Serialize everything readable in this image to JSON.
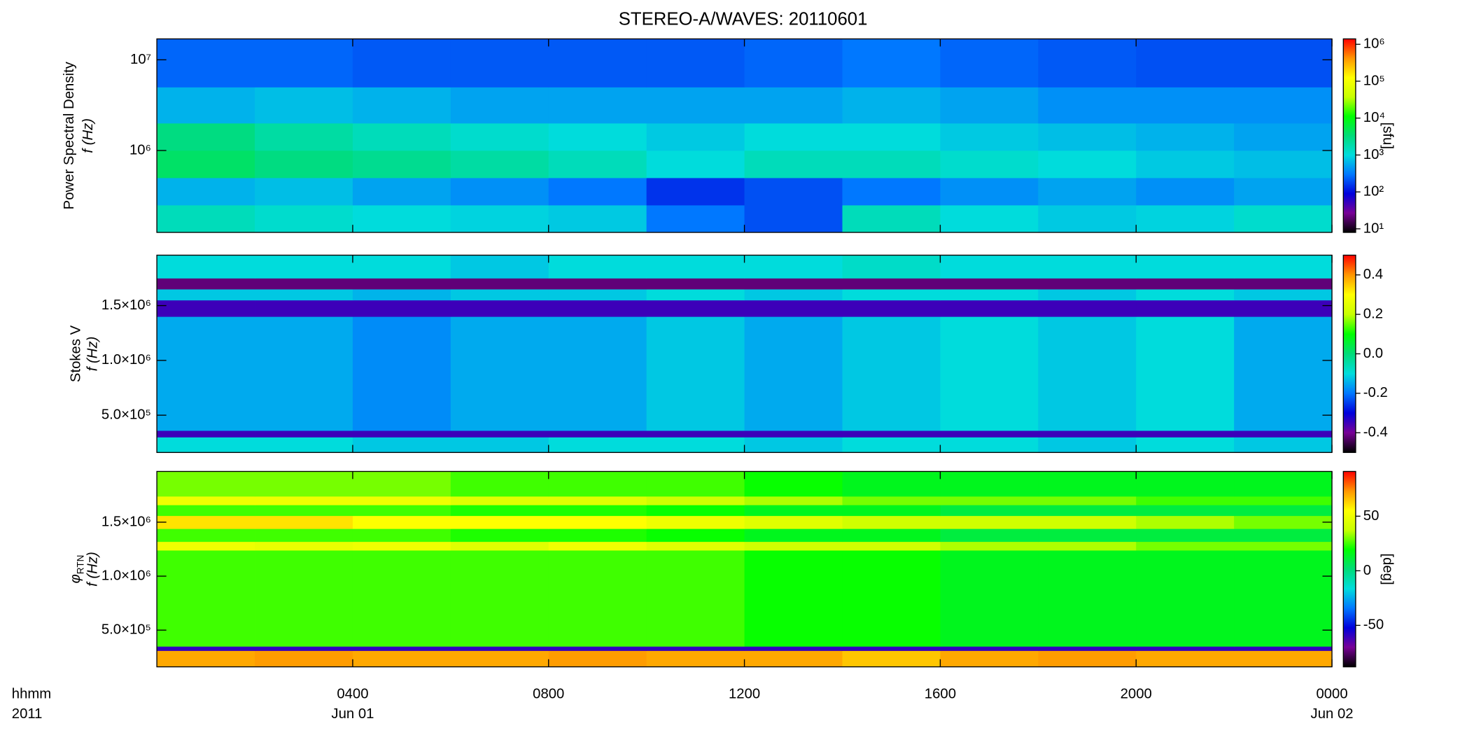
{
  "title": "STEREO-A/WAVES: 20110601",
  "chart_data": [
    {
      "type": "heatmap",
      "ylabel": "Power Spectral Density",
      "ylabel2": "f (Hz)",
      "zlabel": "[sfu]",
      "xlim": [
        0,
        24
      ],
      "ylim": [
        125000,
        17000000
      ],
      "ylog": true,
      "yticks": [
        {
          "value": 1000000,
          "label": "10⁶"
        },
        {
          "value": 10000000,
          "label": "10⁷"
        }
      ],
      "zlim": [
        8,
        1400000
      ],
      "zlog": true,
      "zticks": [
        {
          "value": 10,
          "label": "10¹"
        },
        {
          "value": 100,
          "label": "10²"
        },
        {
          "value": 1000,
          "label": "10³"
        },
        {
          "value": 10000,
          "label": "10⁴"
        },
        {
          "value": 100000,
          "label": "10⁵"
        },
        {
          "value": 1000000,
          "label": "10⁶"
        }
      ],
      "colormap": [
        "#000000",
        "#780096",
        "#0000dc",
        "#0078ff",
        "#00dcdc",
        "#00dc78",
        "#00ff00",
        "#c8ff00",
        "#ffff00",
        "#ff9600",
        "#ff0000"
      ],
      "x_edges": [
        0,
        2,
        4,
        6,
        8,
        10,
        12,
        14,
        16,
        18,
        20,
        22,
        24
      ],
      "y_edges": [
        125000,
        250000,
        500000,
        1000000,
        2000000,
        5000000,
        17000000
      ],
      "z": [
        [
          1500,
          1200,
          1000,
          900,
          800,
          300,
          200,
          1500,
          1000,
          800,
          900,
          1200
        ],
        [
          600,
          700,
          500,
          400,
          300,
          150,
          200,
          300,
          400,
          500,
          400,
          500
        ],
        [
          4000,
          3000,
          2500,
          2000,
          1500,
          1000,
          1500,
          1500,
          1200,
          1000,
          800,
          700
        ],
        [
          3000,
          2000,
          1500,
          1200,
          1000,
          800,
          1000,
          1000,
          800,
          700,
          600,
          500
        ],
        [
          600,
          700,
          600,
          500,
          500,
          500,
          500,
          600,
          500,
          400,
          400,
          400
        ],
        [
          250,
          250,
          220,
          220,
          220,
          220,
          250,
          300,
          250,
          220,
          200,
          200
        ]
      ]
    },
    {
      "type": "heatmap",
      "ylabel": "Stokes V",
      "ylabel2": "f (Hz)",
      "xlim": [
        0,
        24
      ],
      "ylim": [
        160000,
        1960000
      ],
      "yticks": [
        {
          "value": 500000,
          "label": "5.0×10⁵"
        },
        {
          "value": 1000000,
          "label": "1.0×10⁶"
        },
        {
          "value": 1500000,
          "label": "1.5×10⁶"
        }
      ],
      "zlim": [
        -0.5,
        0.5
      ],
      "zticks": [
        -0.4,
        -0.2,
        {
          "value": 0,
          "label": "0.0"
        },
        0.2,
        0.4
      ],
      "colormap": [
        "#000000",
        "#780096",
        "#0000dc",
        "#0078ff",
        "#00dcdc",
        "#00dc78",
        "#00ff00",
        "#c8ff00",
        "#ffff00",
        "#ff9600",
        "#ff0000"
      ],
      "x_edges": [
        0,
        2,
        4,
        6,
        8,
        10,
        12,
        14,
        16,
        18,
        20,
        22,
        24
      ],
      "y_edges": [
        160000,
        300000,
        360000,
        1400000,
        1550000,
        1650000,
        1750000,
        1960000
      ],
      "z": [
        [
          -0.1,
          -0.1,
          -0.12,
          -0.12,
          -0.1,
          -0.1,
          -0.12,
          -0.1,
          -0.1,
          -0.12,
          -0.1,
          -0.12
        ],
        [
          -0.35,
          -0.35,
          -0.35,
          -0.35,
          -0.35,
          -0.35,
          -0.35,
          -0.35,
          -0.35,
          -0.35,
          -0.35,
          -0.35
        ],
        [
          -0.15,
          -0.15,
          -0.18,
          -0.15,
          -0.15,
          -0.12,
          -0.15,
          -0.12,
          -0.1,
          -0.12,
          -0.1,
          -0.15
        ],
        [
          -0.35,
          -0.35,
          -0.35,
          -0.35,
          -0.35,
          -0.35,
          -0.35,
          -0.35,
          -0.35,
          -0.35,
          -0.35,
          -0.35
        ],
        [
          -0.12,
          -0.12,
          -0.14,
          -0.12,
          -0.12,
          -0.1,
          -0.12,
          -0.1,
          -0.1,
          -0.12,
          -0.1,
          -0.12
        ],
        [
          -0.42,
          -0.42,
          -0.42,
          -0.42,
          -0.42,
          -0.42,
          -0.42,
          -0.42,
          -0.42,
          -0.42,
          -0.42,
          -0.42
        ],
        [
          -0.1,
          -0.1,
          -0.1,
          -0.12,
          -0.1,
          -0.1,
          -0.1,
          -0.08,
          -0.1,
          -0.1,
          -0.1,
          -0.1
        ]
      ]
    },
    {
      "type": "heatmap",
      "ylabel": "φ",
      "ylabel_sub": "RTN",
      "ylabel2": "f (Hz)",
      "zlabel": "[deg]",
      "xlim": [
        0,
        24
      ],
      "ylim": [
        160000,
        1970000
      ],
      "yticks": [
        {
          "value": 500000,
          "label": "5.0×10⁵"
        },
        {
          "value": 1000000,
          "label": "1.0×10⁶"
        },
        {
          "value": 1500000,
          "label": "1.5×10⁶"
        }
      ],
      "xticks": [
        {
          "value": 4,
          "label": "0400"
        },
        {
          "value": 8,
          "label": "0800"
        },
        {
          "value": 12,
          "label": "1200"
        },
        {
          "value": 16,
          "label": "1600"
        },
        {
          "value": 20,
          "label": "2000"
        },
        {
          "value": 24,
          "label": "0000"
        }
      ],
      "xticks2": [
        {
          "value": 4,
          "label": "Jun 01"
        },
        {
          "value": 24,
          "label": "Jun 02"
        }
      ],
      "xlabel": [
        "hhmm",
        "2011"
      ],
      "zlim": [
        -88,
        91
      ],
      "zticks": [
        -50,
        0,
        50
      ],
      "colormap": [
        "#000000",
        "#780096",
        "#0000dc",
        "#0078ff",
        "#00dcdc",
        "#00dc78",
        "#00ff00",
        "#c8ff00",
        "#ffff00",
        "#ff9600",
        "#ff0000"
      ],
      "x_edges": [
        0,
        2,
        4,
        6,
        8,
        10,
        12,
        14,
        16,
        18,
        20,
        22,
        24
      ],
      "y_edges": [
        160000,
        310000,
        350000,
        1240000,
        1320000,
        1440000,
        1560000,
        1660000,
        1740000,
        1970000
      ],
      "z": [
        [
          70,
          72,
          70,
          70,
          72,
          70,
          70,
          65,
          70,
          72,
          70,
          70
        ],
        [
          -60,
          -60,
          -60,
          -60,
          -60,
          -60,
          -60,
          -60,
          -60,
          -60,
          -60,
          -60
        ],
        [
          25,
          25,
          25,
          25,
          25,
          25,
          20,
          20,
          15,
          15,
          15,
          15
        ],
        [
          50,
          48,
          50,
          45,
          50,
          45,
          40,
          40,
          35,
          35,
          30,
          30
        ],
        [
          25,
          25,
          25,
          22,
          22,
          20,
          15,
          15,
          10,
          10,
          10,
          10
        ],
        [
          60,
          60,
          55,
          55,
          55,
          50,
          45,
          40,
          40,
          40,
          35,
          30
        ],
        [
          25,
          25,
          25,
          22,
          22,
          20,
          15,
          15,
          10,
          10,
          10,
          10
        ],
        [
          50,
          50,
          50,
          45,
          45,
          40,
          35,
          30,
          30,
          30,
          25,
          25
        ],
        [
          30,
          30,
          30,
          25,
          25,
          25,
          20,
          15,
          15,
          15,
          15,
          15
        ]
      ]
    }
  ]
}
